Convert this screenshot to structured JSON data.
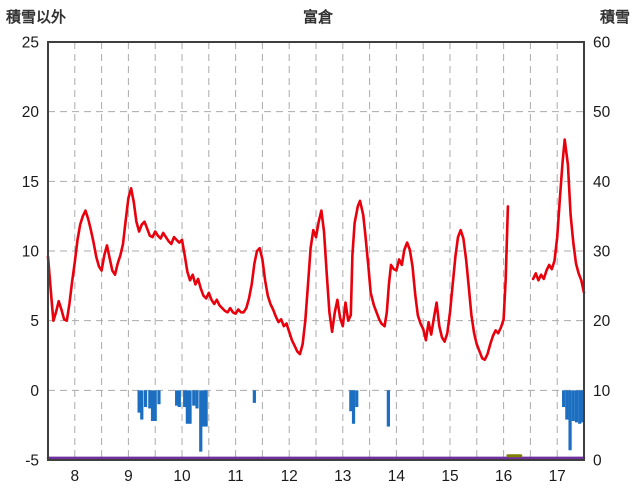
{
  "chart_data": {
    "type": "line",
    "title": "富倉",
    "left_axis_title": "積雪以外",
    "right_axis_title": "積雪",
    "left_axis": {
      "min": -5,
      "max": 25,
      "ticks": [
        25,
        20,
        15,
        10,
        5,
        0,
        -5
      ]
    },
    "right_axis": {
      "min": 0,
      "max": 60,
      "ticks": [
        60,
        50,
        40,
        30,
        20,
        10,
        0
      ]
    },
    "x_axis": {
      "min": 7.5,
      "max": 17.5,
      "ticks": [
        8,
        9,
        10,
        11,
        12,
        13,
        14,
        15,
        16,
        17
      ],
      "grid_step": 0.5
    },
    "grid": {
      "color": "#ababab",
      "dash": "7 5"
    },
    "frame_color": "#3f3f3f",
    "tick_label_color": "#1a1a1a",
    "series": [
      {
        "name": "red_line",
        "type": "line",
        "axis": "left",
        "color": "#e8000d",
        "width": 2.6,
        "segments": [
          [
            [
              7.5,
              9.6
            ],
            [
              7.53,
              8.2
            ],
            [
              7.57,
              6.3
            ],
            [
              7.6,
              5.0
            ],
            [
              7.65,
              5.6
            ],
            [
              7.7,
              6.4
            ],
            [
              7.75,
              5.8
            ],
            [
              7.8,
              5.1
            ],
            [
              7.85,
              5.0
            ],
            [
              7.9,
              6.2
            ],
            [
              7.95,
              7.8
            ],
            [
              8.0,
              9.2
            ],
            [
              8.05,
              10.8
            ],
            [
              8.1,
              11.9
            ],
            [
              8.15,
              12.5
            ],
            [
              8.2,
              12.9
            ],
            [
              8.25,
              12.3
            ],
            [
              8.3,
              11.5
            ],
            [
              8.35,
              10.6
            ],
            [
              8.4,
              9.6
            ],
            [
              8.45,
              8.9
            ],
            [
              8.5,
              8.6
            ],
            [
              8.55,
              9.7
            ],
            [
              8.6,
              10.4
            ],
            [
              8.65,
              9.5
            ],
            [
              8.7,
              8.6
            ],
            [
              8.75,
              8.3
            ],
            [
              8.8,
              9.1
            ],
            [
              8.85,
              9.7
            ],
            [
              8.9,
              10.5
            ],
            [
              8.95,
              12.2
            ],
            [
              9.0,
              13.8
            ],
            [
              9.05,
              14.5
            ],
            [
              9.1,
              13.5
            ],
            [
              9.15,
              12.1
            ],
            [
              9.2,
              11.4
            ],
            [
              9.25,
              11.9
            ],
            [
              9.3,
              12.1
            ],
            [
              9.35,
              11.6
            ],
            [
              9.4,
              11.1
            ],
            [
              9.45,
              11.0
            ],
            [
              9.5,
              11.4
            ],
            [
              9.55,
              11.1
            ],
            [
              9.6,
              10.9
            ],
            [
              9.65,
              11.3
            ],
            [
              9.7,
              11.0
            ],
            [
              9.75,
              10.7
            ],
            [
              9.8,
              10.5
            ],
            [
              9.85,
              11.0
            ],
            [
              9.9,
              10.8
            ],
            [
              9.95,
              10.6
            ],
            [
              10.0,
              10.8
            ],
            [
              10.05,
              9.7
            ],
            [
              10.1,
              8.5
            ],
            [
              10.15,
              7.9
            ],
            [
              10.2,
              8.3
            ],
            [
              10.25,
              7.6
            ],
            [
              10.3,
              8.0
            ],
            [
              10.35,
              7.3
            ],
            [
              10.4,
              6.8
            ],
            [
              10.45,
              6.6
            ],
            [
              10.5,
              7.0
            ],
            [
              10.55,
              6.5
            ],
            [
              10.6,
              6.2
            ],
            [
              10.65,
              6.5
            ],
            [
              10.7,
              6.1
            ],
            [
              10.75,
              5.9
            ],
            [
              10.8,
              5.7
            ],
            [
              10.85,
              5.6
            ],
            [
              10.9,
              5.9
            ],
            [
              10.95,
              5.6
            ],
            [
              11.0,
              5.5
            ],
            [
              11.05,
              5.8
            ],
            [
              11.1,
              5.6
            ],
            [
              11.15,
              5.6
            ],
            [
              11.2,
              5.9
            ],
            [
              11.25,
              6.6
            ],
            [
              11.3,
              7.6
            ],
            [
              11.35,
              9.1
            ],
            [
              11.4,
              10.0
            ],
            [
              11.45,
              10.2
            ],
            [
              11.5,
              9.4
            ],
            [
              11.55,
              7.9
            ],
            [
              11.6,
              6.8
            ],
            [
              11.65,
              6.2
            ],
            [
              11.7,
              5.8
            ],
            [
              11.75,
              5.3
            ],
            [
              11.8,
              4.9
            ],
            [
              11.85,
              5.1
            ],
            [
              11.9,
              4.6
            ],
            [
              11.95,
              4.8
            ],
            [
              12.0,
              4.2
            ],
            [
              12.05,
              3.6
            ],
            [
              12.1,
              3.2
            ],
            [
              12.15,
              2.8
            ],
            [
              12.2,
              2.6
            ],
            [
              12.25,
              3.3
            ],
            [
              12.3,
              5.0
            ],
            [
              12.35,
              7.6
            ],
            [
              12.4,
              10.2
            ],
            [
              12.45,
              11.5
            ],
            [
              12.5,
              11.0
            ],
            [
              12.55,
              12.1
            ],
            [
              12.6,
              12.9
            ],
            [
              12.65,
              11.4
            ],
            [
              12.7,
              8.4
            ],
            [
              12.75,
              5.6
            ],
            [
              12.8,
              4.2
            ],
            [
              12.85,
              5.6
            ],
            [
              12.9,
              6.5
            ],
            [
              12.95,
              5.2
            ],
            [
              13.0,
              4.6
            ],
            [
              13.05,
              6.3
            ],
            [
              13.1,
              5.0
            ],
            [
              13.15,
              5.4
            ],
            [
              13.18,
              9.7
            ],
            [
              13.22,
              12.0
            ],
            [
              13.28,
              13.2
            ],
            [
              13.32,
              13.6
            ],
            [
              13.38,
              12.6
            ],
            [
              13.42,
              11.2
            ],
            [
              13.48,
              8.8
            ],
            [
              13.52,
              7.0
            ],
            [
              13.58,
              6.1
            ],
            [
              13.62,
              5.7
            ],
            [
              13.68,
              5.1
            ],
            [
              13.72,
              4.8
            ],
            [
              13.78,
              4.6
            ],
            [
              13.82,
              5.6
            ],
            [
              13.86,
              7.6
            ],
            [
              13.9,
              9.0
            ],
            [
              13.95,
              8.7
            ],
            [
              14.0,
              8.6
            ],
            [
              14.05,
              9.4
            ],
            [
              14.1,
              9.0
            ],
            [
              14.15,
              10.1
            ],
            [
              14.2,
              10.6
            ],
            [
              14.25,
              10.1
            ],
            [
              14.3,
              8.9
            ],
            [
              14.35,
              6.9
            ],
            [
              14.4,
              5.4
            ],
            [
              14.45,
              4.8
            ],
            [
              14.5,
              4.4
            ],
            [
              14.55,
              3.6
            ],
            [
              14.6,
              4.9
            ],
            [
              14.65,
              4.0
            ],
            [
              14.7,
              5.2
            ],
            [
              14.75,
              6.3
            ],
            [
              14.8,
              4.6
            ],
            [
              14.85,
              3.8
            ],
            [
              14.9,
              3.5
            ],
            [
              14.95,
              4.1
            ],
            [
              15.0,
              5.6
            ],
            [
              15.05,
              7.6
            ],
            [
              15.1,
              9.6
            ],
            [
              15.15,
              11.0
            ],
            [
              15.2,
              11.5
            ],
            [
              15.25,
              10.9
            ],
            [
              15.3,
              9.4
            ],
            [
              15.35,
              7.4
            ],
            [
              15.4,
              5.4
            ],
            [
              15.45,
              4.1
            ],
            [
              15.5,
              3.3
            ],
            [
              15.55,
              2.8
            ],
            [
              15.6,
              2.3
            ],
            [
              15.65,
              2.2
            ],
            [
              15.7,
              2.6
            ],
            [
              15.75,
              3.3
            ],
            [
              15.8,
              3.9
            ],
            [
              15.85,
              4.3
            ],
            [
              15.9,
              4.1
            ],
            [
              15.95,
              4.5
            ],
            [
              16.0,
              5.1
            ],
            [
              16.04,
              8.0
            ],
            [
              16.08,
              13.2
            ]
          ],
          [
            [
              16.55,
              8.0
            ],
            [
              16.6,
              8.4
            ],
            [
              16.65,
              7.9
            ],
            [
              16.7,
              8.3
            ],
            [
              16.75,
              8.0
            ],
            [
              16.8,
              8.6
            ],
            [
              16.85,
              9.0
            ],
            [
              16.9,
              8.7
            ],
            [
              16.95,
              9.3
            ],
            [
              17.0,
              11.0
            ],
            [
              17.05,
              13.8
            ],
            [
              17.1,
              16.4
            ],
            [
              17.14,
              18.0
            ],
            [
              17.2,
              16.2
            ],
            [
              17.25,
              12.6
            ],
            [
              17.3,
              10.6
            ],
            [
              17.35,
              9.1
            ],
            [
              17.4,
              8.4
            ],
            [
              17.45,
              7.9
            ],
            [
              17.5,
              7.0
            ]
          ]
        ]
      },
      {
        "name": "blue_bars",
        "type": "bar",
        "axis": "left",
        "color": "#1c6fc0",
        "bar_width_days": 0.06,
        "baseline": 0,
        "points": [
          [
            9.2,
            -1.6
          ],
          [
            9.25,
            -2.1
          ],
          [
            9.32,
            -1.2
          ],
          [
            9.4,
            -1.3
          ],
          [
            9.45,
            -2.2
          ],
          [
            9.5,
            -2.2
          ],
          [
            9.57,
            -1.0
          ],
          [
            9.9,
            -1.1
          ],
          [
            9.95,
            -1.2
          ],
          [
            10.05,
            -1.2
          ],
          [
            10.1,
            -2.4
          ],
          [
            10.15,
            -2.4
          ],
          [
            10.22,
            -1.1
          ],
          [
            10.28,
            -1.3
          ],
          [
            10.35,
            -4.4
          ],
          [
            10.4,
            -2.6
          ],
          [
            10.45,
            -2.6
          ],
          [
            11.35,
            -0.9
          ],
          [
            13.15,
            -1.5
          ],
          [
            13.2,
            -2.4
          ],
          [
            13.26,
            -1.2
          ],
          [
            13.85,
            -2.6
          ],
          [
            17.12,
            -1.2
          ],
          [
            17.18,
            -2.1
          ],
          [
            17.24,
            -4.3
          ],
          [
            17.3,
            -2.2
          ],
          [
            17.36,
            -2.3
          ],
          [
            17.42,
            -2.4
          ],
          [
            17.47,
            -2.3
          ]
        ]
      },
      {
        "name": "purple_baseline",
        "type": "line",
        "axis": "right",
        "color": "#7030a0",
        "width": 2.5,
        "segments": [
          [
            [
              7.5,
              0.3
            ],
            [
              17.5,
              0.3
            ]
          ]
        ]
      },
      {
        "name": "green_segment",
        "type": "line",
        "axis": "right",
        "color": "#7f7f00",
        "width": 3,
        "segments": [
          [
            [
              16.08,
              0.6
            ],
            [
              16.32,
              0.6
            ]
          ]
        ]
      }
    ]
  }
}
